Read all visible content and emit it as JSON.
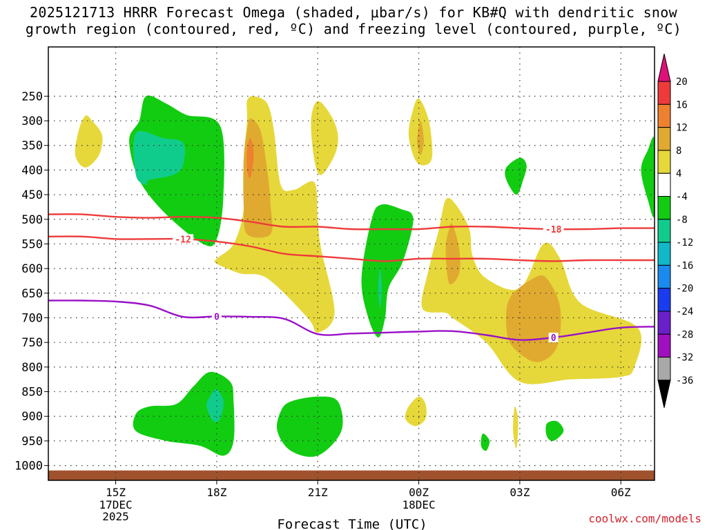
{
  "header": {
    "line1": "2025121713 HRRR Forecast Omega (shaded, μbar/s) for KB#Q with dendritic snow",
    "line2": "growth region (contoured, red, ºC) and freezing level (contoured, purple, ºC)"
  },
  "footer": {
    "credit": "coolwx.com/models"
  },
  "chart_data": {
    "type": "contour",
    "title": "2025121713 HRRR Forecast Omega (shaded, μbar/s) for KB#Q with dendritic snow growth region (contoured, red, ºC) and freezing level (contoured, purple, ºC)",
    "xlabel": "Forecast Time (UTC)",
    "ylabel": "",
    "x_unit": "forecast hour since 2025-12-17 13Z",
    "xlim": [
      0,
      18
    ],
    "y_unit": "hPa",
    "ylim": [
      1030,
      150
    ],
    "x_ticks": [
      {
        "hour": 2,
        "label": "15Z",
        "sub1": "17DEC",
        "sub2": "2025"
      },
      {
        "hour": 5,
        "label": "18Z",
        "sub1": "",
        "sub2": ""
      },
      {
        "hour": 8,
        "label": "21Z",
        "sub1": "",
        "sub2": ""
      },
      {
        "hour": 11,
        "label": "00Z",
        "sub1": "18DEC",
        "sub2": ""
      },
      {
        "hour": 14,
        "label": "03Z",
        "sub1": "",
        "sub2": ""
      },
      {
        "hour": 17,
        "label": "06Z",
        "sub1": "",
        "sub2": ""
      }
    ],
    "y_ticks": [
      250,
      300,
      350,
      400,
      450,
      500,
      550,
      600,
      650,
      700,
      750,
      800,
      850,
      900,
      950,
      1000
    ],
    "grid": "dotted",
    "colorbar": {
      "labels": [
        "20",
        "16",
        "12",
        "8",
        "4",
        "-4",
        "-8",
        "-12",
        "-16",
        "-20",
        "-24",
        "-28",
        "-32",
        "-36"
      ],
      "bands": [
        {
          "range": "16 to 20",
          "color": "#ee3a3a"
        },
        {
          "range": "12 to 16",
          "color": "#ee8130"
        },
        {
          "range": "8 to 12",
          "color": "#e0aa30"
        },
        {
          "range": "4 to 8",
          "color": "#e6d83a"
        },
        {
          "range": "-4 to 4",
          "color": "#ffffff"
        },
        {
          "range": "-8 to -4",
          "color": "#12cc12"
        },
        {
          "range": "-12 to -8",
          "color": "#10cc8c"
        },
        {
          "range": "-16 to -12",
          "color": "#10b8c8"
        },
        {
          "range": "-20 to -16",
          "color": "#1a8aee"
        },
        {
          "range": "-24 to -20",
          "color": "#1a3cee"
        },
        {
          "range": "-28 to -24",
          "color": "#6a20c8"
        },
        {
          "range": "-32 to -28",
          "color": "#a010c0"
        },
        {
          "range": "-36 to -32",
          "color": "#a8a8a8"
        }
      ],
      "top_color": "#e0107a",
      "bottom_color": "#000000"
    },
    "shaded_regions": [
      {
        "omega": "-4 to -8",
        "color": "#12cc12",
        "center_hour": 3.0,
        "center_hpa": 370,
        "pts": [
          [
            2.9,
            250
          ],
          [
            3.5,
            265
          ],
          [
            4.1,
            288
          ],
          [
            5.1,
            310
          ],
          [
            5.2,
            450
          ],
          [
            5.0,
            540
          ],
          [
            4.6,
            550
          ],
          [
            3.5,
            490
          ],
          [
            2.7,
            420
          ],
          [
            2.4,
            340
          ],
          [
            2.7,
            300
          ]
        ]
      },
      {
        "omega": "-8 to -12",
        "color": "#10cc8c",
        "center_hour": 3.2,
        "center_hpa": 370,
        "pts": [
          [
            2.6,
            325
          ],
          [
            3.4,
            335
          ],
          [
            4.0,
            345
          ],
          [
            4.0,
            390
          ],
          [
            3.7,
            410
          ],
          [
            3.0,
            420
          ],
          [
            2.9,
            430
          ],
          [
            2.6,
            410
          ]
        ]
      },
      {
        "omega": "4 to 8",
        "color": "#e6d83a",
        "center_hour": 1.2,
        "center_hpa": 350,
        "pts": [
          [
            1.1,
            290
          ],
          [
            1.3,
            300
          ],
          [
            1.6,
            330
          ],
          [
            1.5,
            370
          ],
          [
            1.1,
            395
          ],
          [
            0.8,
            370
          ],
          [
            0.9,
            320
          ]
        ]
      },
      {
        "omega": "4 to 8",
        "color": "#e6d83a",
        "center_hour": 6.5,
        "center_hpa": 500,
        "pts": [
          [
            6.1,
            250
          ],
          [
            6.5,
            265
          ],
          [
            6.7,
            320
          ],
          [
            6.9,
            430
          ],
          [
            7.3,
            440
          ],
          [
            7.9,
            425
          ],
          [
            8.0,
            500
          ],
          [
            8.1,
            560
          ],
          [
            8.5,
            690
          ],
          [
            8.0,
            730
          ],
          [
            7.7,
            700
          ],
          [
            6.5,
            620
          ],
          [
            5.7,
            610
          ],
          [
            5.0,
            590
          ],
          [
            5.0,
            580
          ],
          [
            5.5,
            550
          ],
          [
            5.8,
            480
          ],
          [
            5.8,
            380
          ],
          [
            5.9,
            300
          ],
          [
            5.9,
            260
          ]
        ]
      },
      {
        "omega": "8 to 12",
        "color": "#e0aa30",
        "center_hour": 6.1,
        "center_hpa": 400,
        "pts": [
          [
            6.0,
            295
          ],
          [
            6.3,
            320
          ],
          [
            6.5,
            400
          ],
          [
            6.6,
            470
          ],
          [
            6.6,
            530
          ],
          [
            5.9,
            530
          ],
          [
            5.8,
            470
          ],
          [
            5.8,
            380
          ],
          [
            5.9,
            320
          ]
        ]
      },
      {
        "omega": "12 to 16",
        "color": "#ee8130",
        "center_hour": 6.0,
        "center_hpa": 365,
        "pts": [
          [
            6.0,
            335
          ],
          [
            6.1,
            370
          ],
          [
            6.0,
            415
          ],
          [
            5.9,
            400
          ],
          [
            5.9,
            360
          ]
        ]
      },
      {
        "omega": "4 to 8",
        "color": "#e6d83a",
        "center_hour": 8.0,
        "center_hpa": 300,
        "pts": [
          [
            8.0,
            260
          ],
          [
            8.4,
            290
          ],
          [
            8.6,
            330
          ],
          [
            8.5,
            370
          ],
          [
            8.1,
            410
          ],
          [
            7.9,
            380
          ],
          [
            7.8,
            300
          ]
        ]
      },
      {
        "omega": "4 to 8",
        "color": "#e6d83a",
        "center_hour": 11.0,
        "center_hpa": 330,
        "pts": [
          [
            11.0,
            255
          ],
          [
            11.3,
            300
          ],
          [
            11.4,
            370
          ],
          [
            11.2,
            390
          ],
          [
            10.9,
            380
          ],
          [
            10.7,
            330
          ],
          [
            10.8,
            285
          ]
        ]
      },
      {
        "omega": "8 to 12",
        "color": "#e0aa30",
        "center_hour": 11.0,
        "center_hpa": 345,
        "pts": [
          [
            11.05,
            300
          ],
          [
            11.15,
            340
          ],
          [
            11.05,
            370
          ],
          [
            10.95,
            340
          ]
        ]
      },
      {
        "omega": "-4 to -8",
        "color": "#12cc12",
        "center_hour": 10.0,
        "center_hpa": 590,
        "pts": [
          [
            9.9,
            470
          ],
          [
            10.5,
            480
          ],
          [
            10.8,
            490
          ],
          [
            10.8,
            520
          ],
          [
            10.5,
            590
          ],
          [
            10.1,
            640
          ],
          [
            10.0,
            700
          ],
          [
            9.8,
            740
          ],
          [
            9.5,
            700
          ],
          [
            9.3,
            620
          ],
          [
            9.6,
            500
          ]
        ]
      },
      {
        "omega": "-8 to -12",
        "color": "#10cc8c",
        "center_hour": 9.8,
        "center_hpa": 630,
        "pts": [
          [
            9.85,
            600
          ],
          [
            9.9,
            640
          ],
          [
            9.85,
            680
          ],
          [
            9.8,
            640
          ]
        ]
      },
      {
        "omega": "4 to 8",
        "color": "#e6d83a",
        "center_hour": 14.0,
        "center_hpa": 650,
        "pts": [
          [
            11.8,
            460
          ],
          [
            12.1,
            470
          ],
          [
            12.5,
            520
          ],
          [
            12.6,
            575
          ],
          [
            13.0,
            620
          ],
          [
            14.0,
            640
          ],
          [
            14.7,
            550
          ],
          [
            15.2,
            580
          ],
          [
            15.8,
            670
          ],
          [
            17.5,
            720
          ],
          [
            17.4,
            800
          ],
          [
            17.0,
            820
          ],
          [
            15.5,
            825
          ],
          [
            14.0,
            830
          ],
          [
            13.0,
            750
          ],
          [
            12.0,
            700
          ],
          [
            11.8,
            690
          ],
          [
            11.1,
            680
          ],
          [
            11.3,
            600
          ],
          [
            11.6,
            520
          ]
        ]
      },
      {
        "omega": "8 to 12",
        "color": "#e0aa30",
        "center_hour": 14.5,
        "center_hpa": 710,
        "pts": [
          [
            14.4,
            620
          ],
          [
            14.8,
            620
          ],
          [
            15.2,
            680
          ],
          [
            15.1,
            760
          ],
          [
            14.5,
            790
          ],
          [
            13.8,
            760
          ],
          [
            13.6,
            720
          ],
          [
            13.7,
            660
          ]
        ]
      },
      {
        "omega": "8 to 12",
        "color": "#e0aa30",
        "center_hour": 12.0,
        "center_hpa": 560,
        "pts": [
          [
            12.0,
            510
          ],
          [
            12.2,
            560
          ],
          [
            12.2,
            610
          ],
          [
            11.9,
            630
          ],
          [
            11.8,
            560
          ],
          [
            11.9,
            520
          ]
        ]
      },
      {
        "omega": "-4 to -8",
        "color": "#12cc12",
        "center_hour": 13.8,
        "center_hpa": 410,
        "pts": [
          [
            14.0,
            375
          ],
          [
            14.2,
            390
          ],
          [
            14.1,
            420
          ],
          [
            13.9,
            450
          ],
          [
            13.6,
            420
          ],
          [
            13.6,
            395
          ]
        ]
      },
      {
        "omega": "-4 to -8",
        "color": "#12cc12",
        "center_hour": 17.9,
        "center_hpa": 400,
        "pts": [
          [
            18.0,
            340
          ],
          [
            18.0,
            490
          ],
          [
            17.8,
            460
          ],
          [
            17.6,
            400
          ],
          [
            17.8,
            360
          ]
        ]
      },
      {
        "omega": "-4 to -8",
        "color": "#12cc12",
        "center_hour": 3.0,
        "center_hpa": 900,
        "pts": [
          [
            2.6,
            895
          ],
          [
            3.0,
            880
          ],
          [
            3.8,
            875
          ],
          [
            4.3,
            840
          ],
          [
            4.8,
            810
          ],
          [
            5.4,
            830
          ],
          [
            5.5,
            870
          ],
          [
            5.5,
            950
          ],
          [
            5.2,
            980
          ],
          [
            4.5,
            960
          ],
          [
            3.5,
            950
          ],
          [
            2.6,
            930
          ]
        ]
      },
      {
        "omega": "-8 to -12",
        "color": "#10cc8c",
        "center_hour": 5.0,
        "center_hpa": 880,
        "pts": [
          [
            5.0,
            845
          ],
          [
            5.2,
            870
          ],
          [
            5.1,
            905
          ],
          [
            4.9,
            910
          ],
          [
            4.7,
            880
          ],
          [
            4.8,
            860
          ]
        ]
      },
      {
        "omega": "-4 to -8",
        "color": "#12cc12",
        "center_hour": 7.9,
        "center_hpa": 910,
        "pts": [
          [
            7.2,
            870
          ],
          [
            8.0,
            860
          ],
          [
            8.6,
            870
          ],
          [
            8.7,
            930
          ],
          [
            8.0,
            980
          ],
          [
            7.2,
            970
          ],
          [
            6.8,
            930
          ],
          [
            6.9,
            890
          ]
        ]
      },
      {
        "omega": "4 to 8",
        "color": "#e6d83a",
        "center_hour": 11.0,
        "center_hpa": 895,
        "pts": [
          [
            10.7,
            880
          ],
          [
            11.0,
            860
          ],
          [
            11.2,
            875
          ],
          [
            11.2,
            905
          ],
          [
            10.9,
            920
          ],
          [
            10.6,
            905
          ]
        ]
      },
      {
        "omega": "-4 to -8",
        "color": "#12cc12",
        "center_hour": 13.0,
        "center_hpa": 955,
        "pts": [
          [
            12.9,
            935
          ],
          [
            13.1,
            950
          ],
          [
            13.0,
            970
          ],
          [
            12.85,
            960
          ]
        ]
      },
      {
        "omega": "4 to 8",
        "color": "#e6d83a",
        "center_hour": 13.9,
        "center_hpa": 930,
        "pts": [
          [
            13.85,
            880
          ],
          [
            13.95,
            910
          ],
          [
            13.9,
            965
          ],
          [
            13.8,
            930
          ]
        ]
      },
      {
        "omega": "-4 to -8",
        "color": "#12cc12",
        "center_hour": 15.0,
        "center_hpa": 930,
        "pts": [
          [
            14.8,
            915
          ],
          [
            15.1,
            910
          ],
          [
            15.3,
            930
          ],
          [
            15.0,
            950
          ],
          [
            14.8,
            940
          ]
        ]
      }
    ],
    "series": [
      {
        "name": "-18 C (dendritic, red)",
        "color": "#ee3a3a",
        "label": "-18",
        "label_hour": 15.0,
        "x": [
          0,
          1,
          2,
          3,
          4,
          5,
          6,
          7,
          8,
          9,
          10,
          11,
          12,
          13,
          14,
          15,
          16,
          17,
          18
        ],
        "y": [
          490,
          490,
          495,
          497,
          495,
          497,
          505,
          515,
          515,
          520,
          520,
          520,
          515,
          515,
          518,
          520,
          520,
          518,
          518
        ]
      },
      {
        "name": "-12 C (dendritic, red)",
        "color": "#ee3a3a",
        "label": "-12",
        "label_hour": 4.0,
        "x": [
          0,
          1,
          2,
          3,
          4,
          5,
          6,
          7,
          8,
          9,
          10,
          11,
          12,
          13,
          14,
          15,
          16,
          17,
          18
        ],
        "y": [
          535,
          535,
          540,
          540,
          540,
          545,
          555,
          570,
          575,
          580,
          585,
          580,
          580,
          580,
          583,
          585,
          583,
          583,
          583
        ]
      },
      {
        "name": "0 C (freezing level, purple)",
        "color": "#9a10c8",
        "label": "0",
        "label_hour": 5.0,
        "x": [
          0,
          1,
          2,
          3,
          4,
          5,
          6,
          7,
          8,
          9,
          10,
          11,
          12,
          13,
          14,
          15,
          16,
          17,
          18
        ],
        "y": [
          665,
          665,
          667,
          675,
          698,
          697,
          698,
          702,
          733,
          732,
          730,
          728,
          727,
          735,
          745,
          740,
          730,
          720,
          718
        ],
        "label_hour_2": 15.0
      }
    ],
    "surface_band": {
      "color": "#a0522d",
      "from_hpa": 1010,
      "to_hpa": 1030
    }
  }
}
